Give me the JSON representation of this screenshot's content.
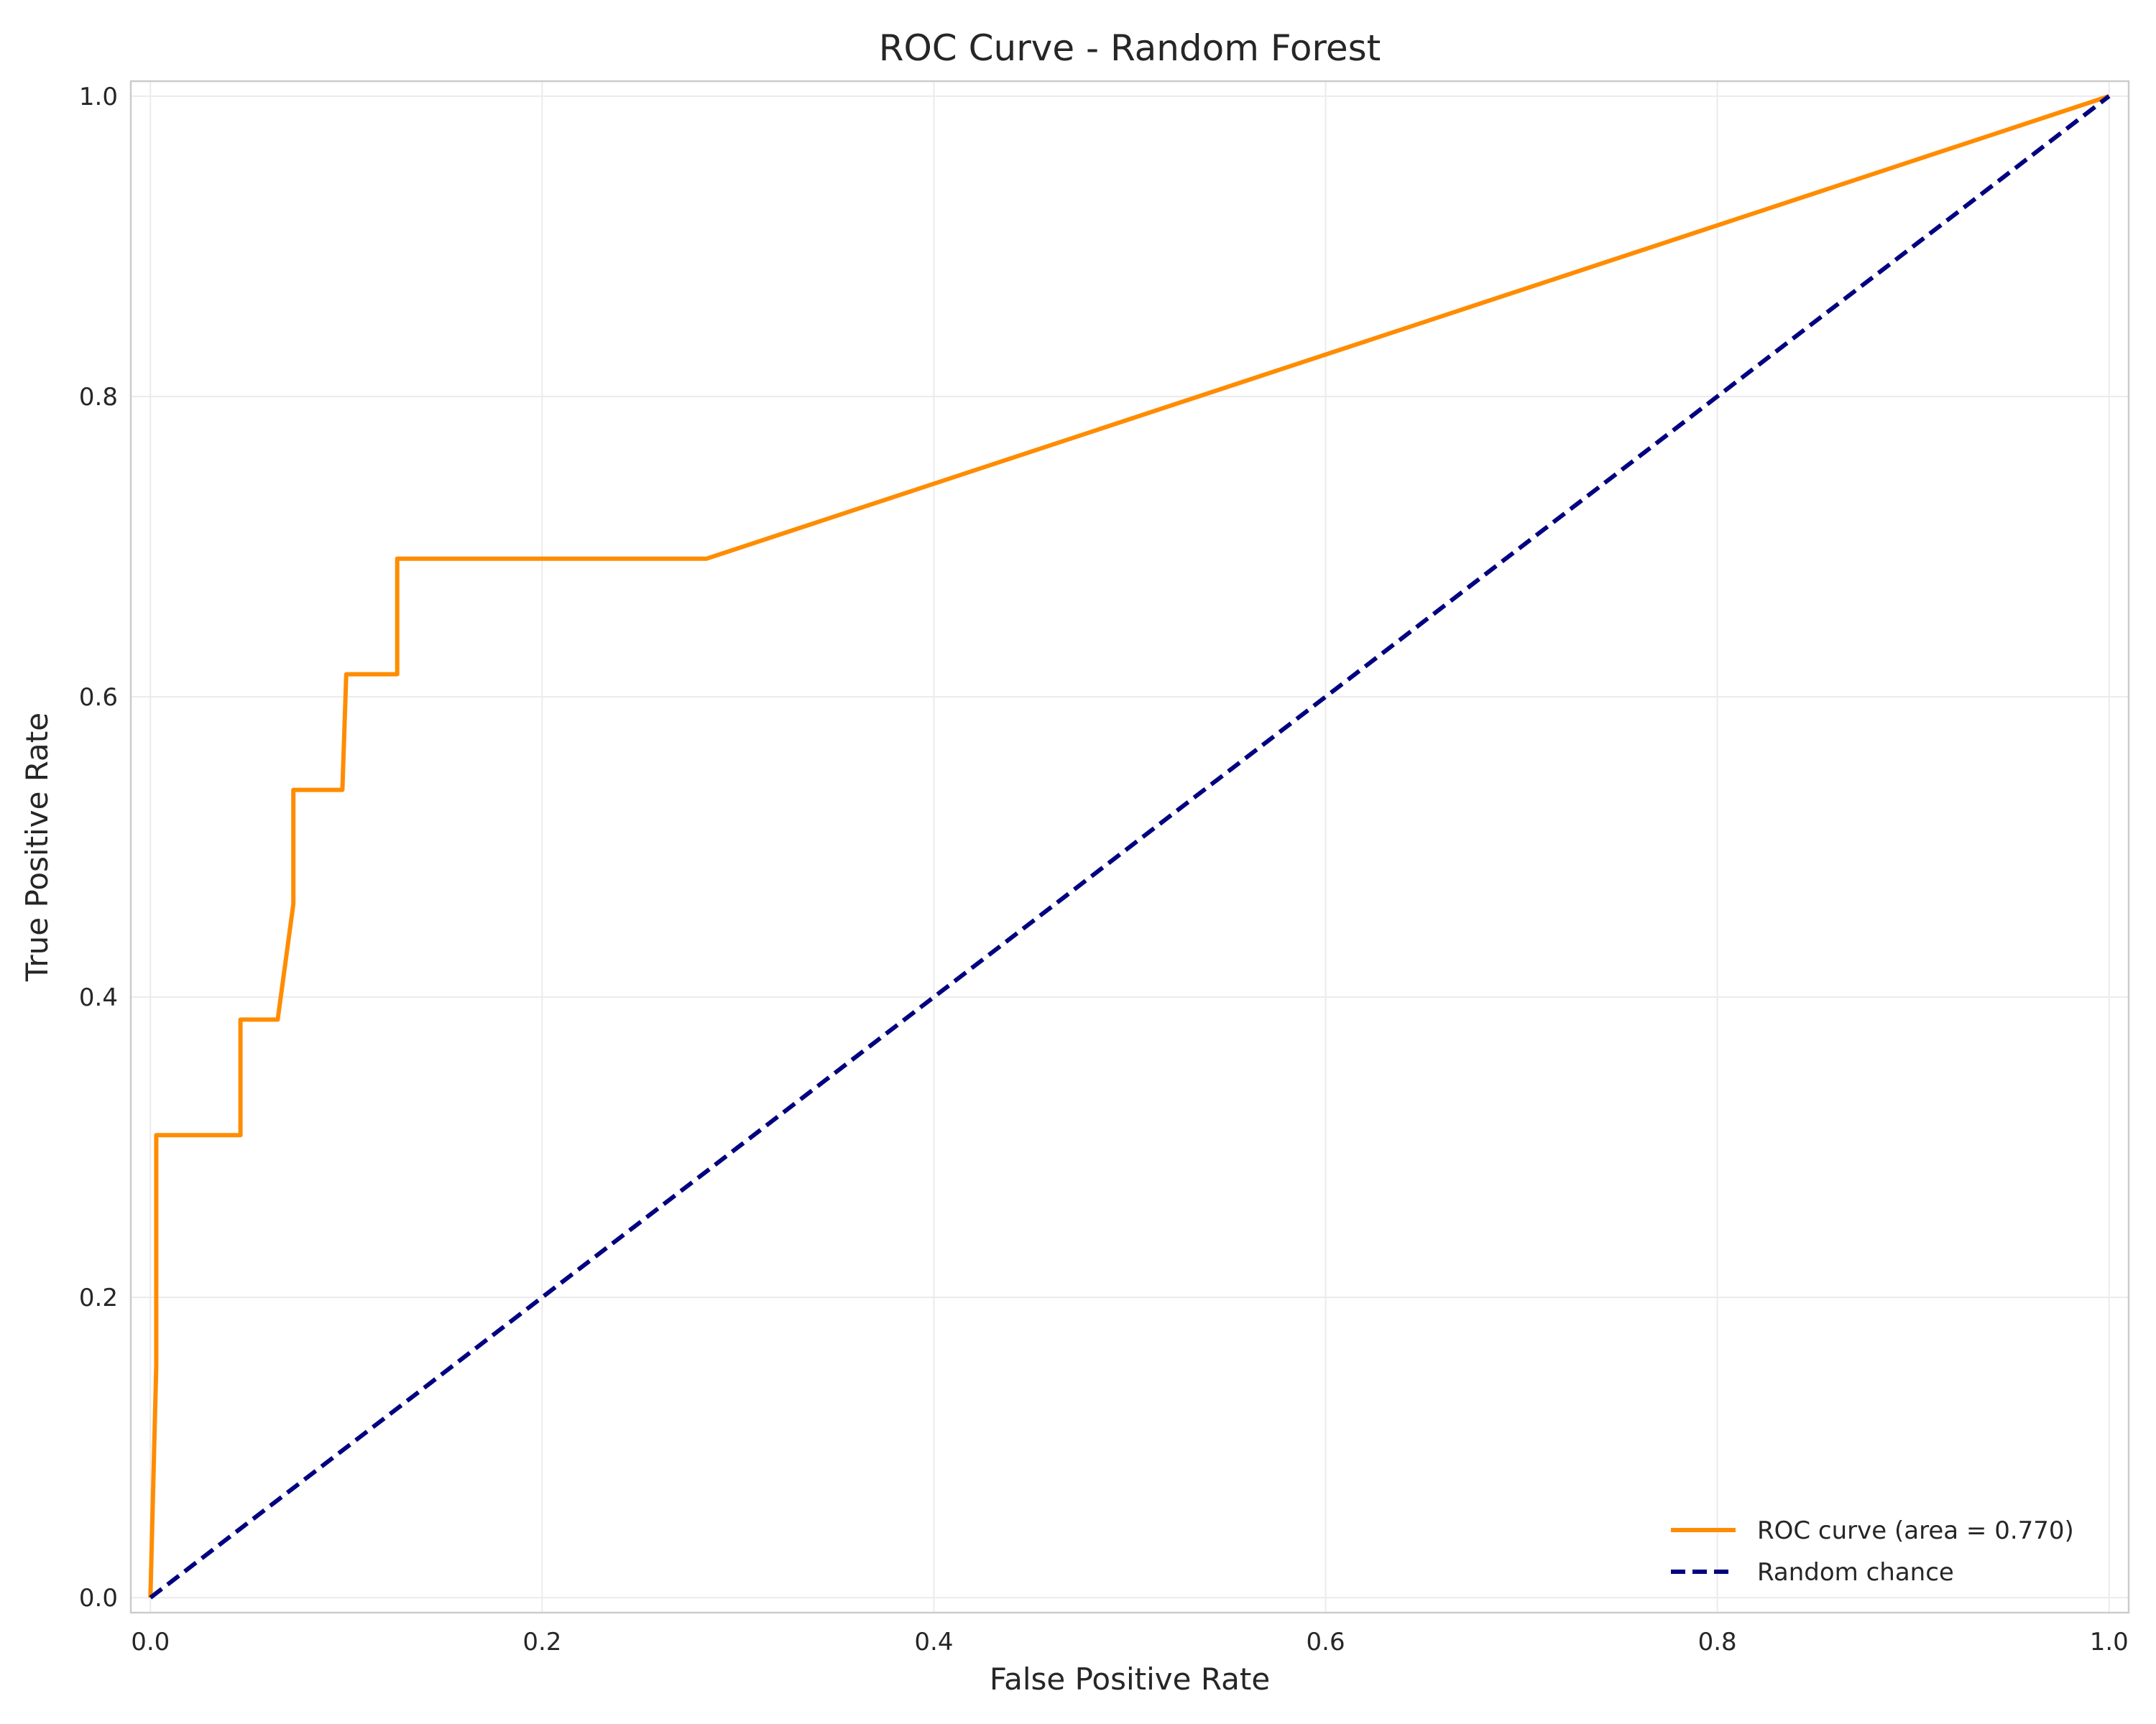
{
  "chart_data": {
    "type": "line",
    "title": "ROC Curve - Random Forest",
    "xlabel": "False Positive Rate",
    "ylabel": "True Positive Rate",
    "xlim": [
      -0.01,
      1.01
    ],
    "ylim": [
      -0.01,
      1.01
    ],
    "grid": true,
    "legend_position": "bottom-right",
    "x_ticks": [
      "0.0",
      "0.2",
      "0.4",
      "0.6",
      "0.8",
      "1.0"
    ],
    "y_ticks": [
      "0.0",
      "0.2",
      "0.4",
      "0.6",
      "0.8",
      "1.0"
    ],
    "series": [
      {
        "name": "ROC curve (area = 0.770)",
        "color": "#ff8c00",
        "style": "solid",
        "x": [
          0.0,
          0.003,
          0.003,
          0.003,
          0.046,
          0.046,
          0.065,
          0.073,
          0.073,
          0.098,
          0.1,
          0.126,
          0.126,
          0.284,
          1.0
        ],
        "y": [
          0.0,
          0.154,
          0.308,
          0.308,
          0.308,
          0.385,
          0.385,
          0.462,
          0.538,
          0.538,
          0.615,
          0.615,
          0.692,
          0.692,
          1.0
        ]
      },
      {
        "name": "Random chance",
        "color": "#000080",
        "style": "dashed",
        "x": [
          0.0,
          1.0
        ],
        "y": [
          0.0,
          1.0
        ]
      }
    ]
  }
}
